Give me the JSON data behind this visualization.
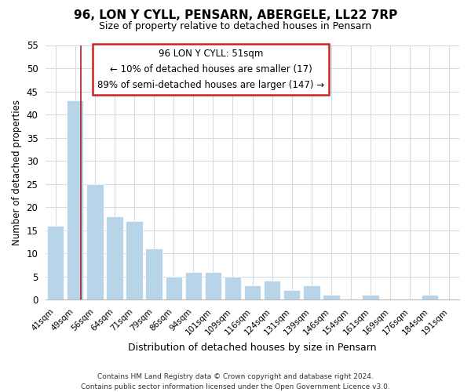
{
  "title": "96, LON Y CYLL, PENSARN, ABERGELE, LL22 7RP",
  "subtitle": "Size of property relative to detached houses in Pensarn",
  "xlabel": "Distribution of detached houses by size in Pensarn",
  "ylabel": "Number of detached properties",
  "bar_color": "#b8d4e8",
  "categories": [
    "41sqm",
    "49sqm",
    "56sqm",
    "64sqm",
    "71sqm",
    "79sqm",
    "86sqm",
    "94sqm",
    "101sqm",
    "109sqm",
    "116sqm",
    "124sqm",
    "131sqm",
    "139sqm",
    "146sqm",
    "154sqm",
    "161sqm",
    "169sqm",
    "176sqm",
    "184sqm",
    "191sqm"
  ],
  "values": [
    16,
    43,
    25,
    18,
    17,
    11,
    5,
    6,
    6,
    5,
    3,
    4,
    2,
    3,
    1,
    0,
    1,
    0,
    0,
    1,
    0
  ],
  "ylim": [
    0,
    55
  ],
  "yticks": [
    0,
    5,
    10,
    15,
    20,
    25,
    30,
    35,
    40,
    45,
    50,
    55
  ],
  "vline_x_idx": 1,
  "vline_color": "#aa2222",
  "annotation_title": "96 LON Y CYLL: 51sqm",
  "annotation_line1": "← 10% of detached houses are smaller (17)",
  "annotation_line2": "89% of semi-detached houses are larger (147) →",
  "footer_line1": "Contains HM Land Registry data © Crown copyright and database right 2024.",
  "footer_line2": "Contains public sector information licensed under the Open Government Licence v3.0.",
  "background_color": "#ffffff",
  "plot_background": "#ffffff",
  "grid_color": "#d0dce8"
}
